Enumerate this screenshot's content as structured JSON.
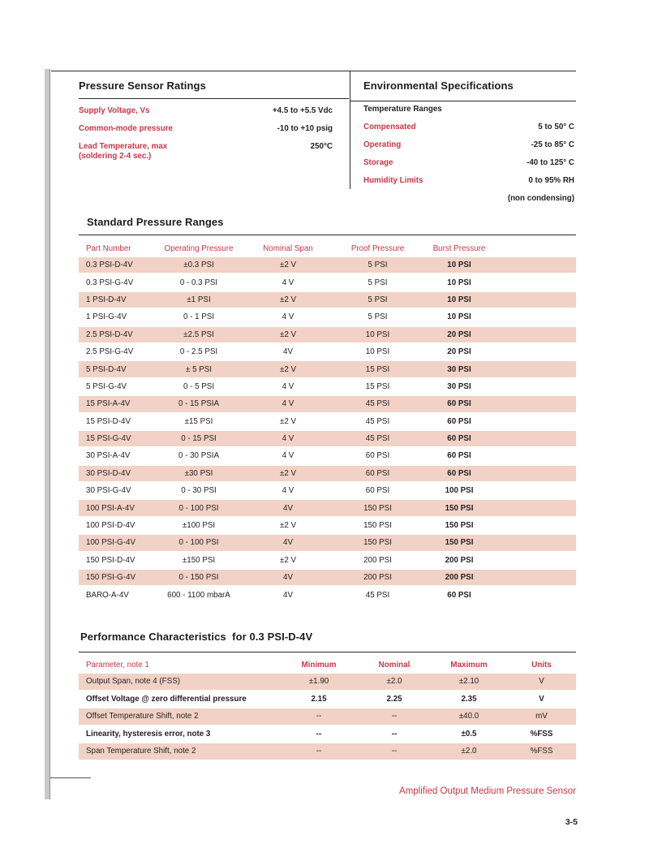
{
  "colors": {
    "accent_red": "#c4384a",
    "row_pink": "#f2d2c6",
    "margin_bar_gray": "#c9c9c9"
  },
  "ratings": {
    "title": "Pressure Sensor Ratings",
    "rows": [
      {
        "label": "Supply Voltage, Vs",
        "value": "+4.5 to +5.5 Vdc"
      },
      {
        "label": "Common-mode pressure",
        "value": "-10 to +10 psig"
      },
      {
        "label": "Lead Temperature, max\n(soldering 2-4 sec.)",
        "value": "250°C"
      }
    ]
  },
  "environmental": {
    "title": "Environmental Specifications",
    "subheading": "Temperature Ranges",
    "rows": [
      {
        "label": "Compensated",
        "value": "5 to 50° C"
      },
      {
        "label": "Operating",
        "value": "-25 to 85° C"
      },
      {
        "label": "Storage",
        "value": "-40 to 125° C"
      },
      {
        "label": "Humidity Limits",
        "value": "0 to 95% RH"
      }
    ],
    "note": "(non condensing)"
  },
  "standard_ranges": {
    "title": "Standard Pressure Ranges",
    "headers": [
      "Part Number",
      "Operating Pressure",
      "Nominal Span",
      "Proof Pressure",
      "Burst Pressure"
    ],
    "rows": [
      [
        "0.3 PSI-D-4V",
        "±0.3 PSI",
        "±2 V",
        "5 PSI",
        "10 PSI"
      ],
      [
        "0.3 PSI-G-4V",
        "0 - 0.3 PSI",
        "4 V",
        "5 PSI",
        "10 PSI"
      ],
      [
        "1 PSI-D-4V",
        "±1 PSI",
        "±2 V",
        "5 PSI",
        "10 PSI"
      ],
      [
        "1 PSI-G-4V",
        "0 - 1 PSI",
        "4 V",
        "5 PSI",
        "10 PSI"
      ],
      [
        "2.5 PSI-D-4V",
        "±2.5 PSI",
        "±2 V",
        "10 PSI",
        "20 PSI"
      ],
      [
        "2.5 PSI-G-4V",
        "0 - 2.5 PSI",
        "4V",
        "10 PSI",
        "20 PSI"
      ],
      [
        "5 PSI-D-4V",
        "± 5 PSI",
        "±2 V",
        "15 PSI",
        "30 PSI"
      ],
      [
        "5 PSI-G-4V",
        "0 - 5 PSI",
        "4 V",
        "15 PSI",
        "30 PSI"
      ],
      [
        "15 PSI-A-4V",
        "0 - 15 PSIA",
        "4 V",
        "45 PSI",
        "60 PSI"
      ],
      [
        "15 PSI-D-4V",
        "±15 PSI",
        "±2 V",
        "45 PSI",
        "60 PSI"
      ],
      [
        "15 PSI-G-4V",
        "0 - 15 PSI",
        "4 V",
        "45 PSI",
        "60 PSI"
      ],
      [
        "30 PSI-A-4V",
        "0 - 30 PSIA",
        "4 V",
        "60 PSI",
        "60 PSI"
      ],
      [
        "30 PSI-D-4V",
        "±30 PSI",
        "±2 V",
        "60 PSI",
        "60 PSI"
      ],
      [
        "30 PSI-G-4V",
        "0 - 30 PSI",
        "4 V",
        "60 PSI",
        "100 PSI"
      ],
      [
        "100 PSI-A-4V",
        "0 - 100 PSI",
        "4V",
        "150 PSI",
        "150 PSI"
      ],
      [
        "100 PSI-D-4V",
        "±100 PSI",
        "±2 V",
        "150 PSI",
        "150 PSI"
      ],
      [
        "100 PSI-G-4V",
        "0 - 100 PSI",
        "4V",
        "150 PSI",
        "150 PSI"
      ],
      [
        "150 PSI-D-4V",
        "±150 PSI",
        "±2 V",
        "200 PSI",
        "200 PSI"
      ],
      [
        "150 PSI-G-4V",
        "0 - 150 PSI",
        "4V",
        "200 PSI",
        "200 PSI"
      ],
      [
        "BARO-A-4V",
        "600 - 1100 mbarA",
        "4V",
        "45 PSI",
        "60 PSI"
      ]
    ]
  },
  "performance": {
    "title": "Performance Characteristics  for 0.3 PSI-D-4V",
    "headers": [
      "Parameter, note 1",
      "Minimum",
      "Nominal",
      "Maximum",
      "Units"
    ],
    "rows": [
      [
        "Output Span, note 4 (FSS)",
        "±1.90",
        "±2.0",
        "±2.10",
        "V"
      ],
      [
        "Offset Voltage @ zero differential pressure",
        "2.15",
        "2.25",
        "2.35",
        "V"
      ],
      [
        "Offset Temperature Shift, note 2",
        "--",
        "--",
        "±40.0",
        "mV"
      ],
      [
        "Linearity, hysteresis error, note 3",
        "--",
        "--",
        "±0.5",
        "%FSS"
      ],
      [
        "Span Temperature Shift, note 2",
        "--",
        "--",
        "±2.0",
        "%FSS"
      ]
    ]
  },
  "footer": {
    "title": "Amplified Output Medium Pressure Sensor",
    "page_number": "3-5"
  }
}
